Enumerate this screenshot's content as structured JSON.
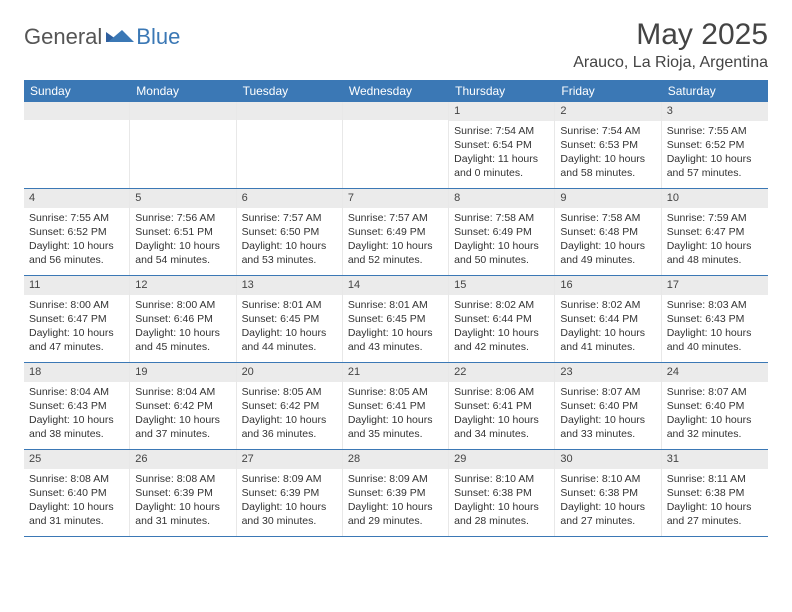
{
  "brand": {
    "part1": "General",
    "part2": "Blue"
  },
  "title": "May 2025",
  "location": "Arauco, La Rioja, Argentina",
  "colors": {
    "accent": "#3b78b5",
    "dayHeaderBg": "#ebebeb",
    "border": "#3b78b5",
    "text": "#333333"
  },
  "weekdays": [
    "Sunday",
    "Monday",
    "Tuesday",
    "Wednesday",
    "Thursday",
    "Friday",
    "Saturday"
  ],
  "weeks": [
    [
      {
        "n": "",
        "sr": "",
        "ss": "",
        "dl": ""
      },
      {
        "n": "",
        "sr": "",
        "ss": "",
        "dl": ""
      },
      {
        "n": "",
        "sr": "",
        "ss": "",
        "dl": ""
      },
      {
        "n": "",
        "sr": "",
        "ss": "",
        "dl": ""
      },
      {
        "n": "1",
        "sr": "Sunrise: 7:54 AM",
        "ss": "Sunset: 6:54 PM",
        "dl": "Daylight: 11 hours and 0 minutes."
      },
      {
        "n": "2",
        "sr": "Sunrise: 7:54 AM",
        "ss": "Sunset: 6:53 PM",
        "dl": "Daylight: 10 hours and 58 minutes."
      },
      {
        "n": "3",
        "sr": "Sunrise: 7:55 AM",
        "ss": "Sunset: 6:52 PM",
        "dl": "Daylight: 10 hours and 57 minutes."
      }
    ],
    [
      {
        "n": "4",
        "sr": "Sunrise: 7:55 AM",
        "ss": "Sunset: 6:52 PM",
        "dl": "Daylight: 10 hours and 56 minutes."
      },
      {
        "n": "5",
        "sr": "Sunrise: 7:56 AM",
        "ss": "Sunset: 6:51 PM",
        "dl": "Daylight: 10 hours and 54 minutes."
      },
      {
        "n": "6",
        "sr": "Sunrise: 7:57 AM",
        "ss": "Sunset: 6:50 PM",
        "dl": "Daylight: 10 hours and 53 minutes."
      },
      {
        "n": "7",
        "sr": "Sunrise: 7:57 AM",
        "ss": "Sunset: 6:49 PM",
        "dl": "Daylight: 10 hours and 52 minutes."
      },
      {
        "n": "8",
        "sr": "Sunrise: 7:58 AM",
        "ss": "Sunset: 6:49 PM",
        "dl": "Daylight: 10 hours and 50 minutes."
      },
      {
        "n": "9",
        "sr": "Sunrise: 7:58 AM",
        "ss": "Sunset: 6:48 PM",
        "dl": "Daylight: 10 hours and 49 minutes."
      },
      {
        "n": "10",
        "sr": "Sunrise: 7:59 AM",
        "ss": "Sunset: 6:47 PM",
        "dl": "Daylight: 10 hours and 48 minutes."
      }
    ],
    [
      {
        "n": "11",
        "sr": "Sunrise: 8:00 AM",
        "ss": "Sunset: 6:47 PM",
        "dl": "Daylight: 10 hours and 47 minutes."
      },
      {
        "n": "12",
        "sr": "Sunrise: 8:00 AM",
        "ss": "Sunset: 6:46 PM",
        "dl": "Daylight: 10 hours and 45 minutes."
      },
      {
        "n": "13",
        "sr": "Sunrise: 8:01 AM",
        "ss": "Sunset: 6:45 PM",
        "dl": "Daylight: 10 hours and 44 minutes."
      },
      {
        "n": "14",
        "sr": "Sunrise: 8:01 AM",
        "ss": "Sunset: 6:45 PM",
        "dl": "Daylight: 10 hours and 43 minutes."
      },
      {
        "n": "15",
        "sr": "Sunrise: 8:02 AM",
        "ss": "Sunset: 6:44 PM",
        "dl": "Daylight: 10 hours and 42 minutes."
      },
      {
        "n": "16",
        "sr": "Sunrise: 8:02 AM",
        "ss": "Sunset: 6:44 PM",
        "dl": "Daylight: 10 hours and 41 minutes."
      },
      {
        "n": "17",
        "sr": "Sunrise: 8:03 AM",
        "ss": "Sunset: 6:43 PM",
        "dl": "Daylight: 10 hours and 40 minutes."
      }
    ],
    [
      {
        "n": "18",
        "sr": "Sunrise: 8:04 AM",
        "ss": "Sunset: 6:43 PM",
        "dl": "Daylight: 10 hours and 38 minutes."
      },
      {
        "n": "19",
        "sr": "Sunrise: 8:04 AM",
        "ss": "Sunset: 6:42 PM",
        "dl": "Daylight: 10 hours and 37 minutes."
      },
      {
        "n": "20",
        "sr": "Sunrise: 8:05 AM",
        "ss": "Sunset: 6:42 PM",
        "dl": "Daylight: 10 hours and 36 minutes."
      },
      {
        "n": "21",
        "sr": "Sunrise: 8:05 AM",
        "ss": "Sunset: 6:41 PM",
        "dl": "Daylight: 10 hours and 35 minutes."
      },
      {
        "n": "22",
        "sr": "Sunrise: 8:06 AM",
        "ss": "Sunset: 6:41 PM",
        "dl": "Daylight: 10 hours and 34 minutes."
      },
      {
        "n": "23",
        "sr": "Sunrise: 8:07 AM",
        "ss": "Sunset: 6:40 PM",
        "dl": "Daylight: 10 hours and 33 minutes."
      },
      {
        "n": "24",
        "sr": "Sunrise: 8:07 AM",
        "ss": "Sunset: 6:40 PM",
        "dl": "Daylight: 10 hours and 32 minutes."
      }
    ],
    [
      {
        "n": "25",
        "sr": "Sunrise: 8:08 AM",
        "ss": "Sunset: 6:40 PM",
        "dl": "Daylight: 10 hours and 31 minutes."
      },
      {
        "n": "26",
        "sr": "Sunrise: 8:08 AM",
        "ss": "Sunset: 6:39 PM",
        "dl": "Daylight: 10 hours and 31 minutes."
      },
      {
        "n": "27",
        "sr": "Sunrise: 8:09 AM",
        "ss": "Sunset: 6:39 PM",
        "dl": "Daylight: 10 hours and 30 minutes."
      },
      {
        "n": "28",
        "sr": "Sunrise: 8:09 AM",
        "ss": "Sunset: 6:39 PM",
        "dl": "Daylight: 10 hours and 29 minutes."
      },
      {
        "n": "29",
        "sr": "Sunrise: 8:10 AM",
        "ss": "Sunset: 6:38 PM",
        "dl": "Daylight: 10 hours and 28 minutes."
      },
      {
        "n": "30",
        "sr": "Sunrise: 8:10 AM",
        "ss": "Sunset: 6:38 PM",
        "dl": "Daylight: 10 hours and 27 minutes."
      },
      {
        "n": "31",
        "sr": "Sunrise: 8:11 AM",
        "ss": "Sunset: 6:38 PM",
        "dl": "Daylight: 10 hours and 27 minutes."
      }
    ]
  ]
}
